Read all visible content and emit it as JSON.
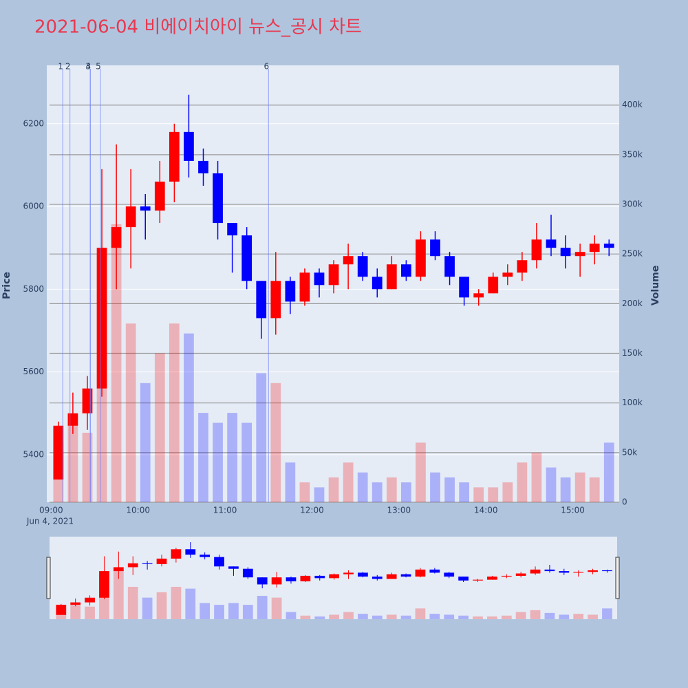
{
  "chart_data": {
    "type": "candlestick",
    "title": "2021-06-04 비에이치아이 뉴스_공시 차트",
    "x_date_label": "Jun 4, 2021",
    "y_title": "Price",
    "y2_title": "Volume",
    "x": [
      "09:00",
      "09:10",
      "09:20",
      "09:30",
      "09:40",
      "09:50",
      "10:00",
      "10:10",
      "10:20",
      "10:30",
      "10:40",
      "10:50",
      "11:00",
      "11:10",
      "11:20",
      "11:30",
      "11:40",
      "11:50",
      "12:00",
      "12:10",
      "12:20",
      "12:30",
      "12:40",
      "12:50",
      "13:00",
      "13:10",
      "13:20",
      "13:30",
      "13:40",
      "13:50",
      "14:00",
      "14:10",
      "14:20",
      "14:30",
      "14:40",
      "14:50",
      "15:00",
      "15:10",
      "15:20"
    ],
    "open": [
      5340,
      5470,
      5500,
      5560,
      5900,
      5950,
      6000,
      5990,
      6060,
      6180,
      6110,
      6080,
      5960,
      5930,
      5820,
      5730,
      5820,
      5770,
      5840,
      5810,
      5860,
      5880,
      5830,
      5800,
      5860,
      5830,
      5920,
      5880,
      5830,
      5780,
      5790,
      5830,
      5840,
      5870,
      5920,
      5900,
      5880,
      5890,
      5910
    ],
    "high": [
      5480,
      5550,
      5590,
      6090,
      6150,
      6090,
      6030,
      6110,
      6200,
      6270,
      6140,
      6110,
      5960,
      5950,
      5820,
      5890,
      5830,
      5850,
      5850,
      5870,
      5910,
      5890,
      5850,
      5880,
      5870,
      5940,
      5940,
      5890,
      5830,
      5800,
      5840,
      5860,
      5890,
      5960,
      5980,
      5930,
      5910,
      5930,
      5920
    ],
    "low": [
      5340,
      5450,
      5460,
      5540,
      5800,
      5850,
      5920,
      5960,
      6010,
      6070,
      6050,
      5920,
      5840,
      5800,
      5680,
      5690,
      5740,
      5760,
      5780,
      5790,
      5800,
      5820,
      5780,
      5800,
      5820,
      5820,
      5870,
      5810,
      5760,
      5760,
      5790,
      5810,
      5820,
      5850,
      5880,
      5850,
      5830,
      5860,
      5880
    ],
    "close": [
      5470,
      5500,
      5560,
      5900,
      5950,
      6000,
      5990,
      6060,
      6180,
      6110,
      6080,
      5960,
      5930,
      5820,
      5730,
      5820,
      5770,
      5840,
      5810,
      5860,
      5880,
      5830,
      5800,
      5860,
      5830,
      5920,
      5880,
      5830,
      5780,
      5790,
      5830,
      5840,
      5870,
      5920,
      5900,
      5880,
      5890,
      5910,
      5900
    ],
    "volume": [
      60000,
      80000,
      70000,
      250000,
      280000,
      180000,
      120000,
      150000,
      180000,
      170000,
      90000,
      80000,
      90000,
      80000,
      130000,
      120000,
      40000,
      20000,
      15000,
      25000,
      40000,
      30000,
      20000,
      25000,
      20000,
      60000,
      30000,
      25000,
      20000,
      15000,
      15000,
      20000,
      40000,
      50000,
      35000,
      25000,
      30000,
      25000,
      60000
    ],
    "up_color": "#ff0000",
    "down_color": "#0000ff",
    "xlim": [
      "08:57",
      "15:32"
    ],
    "xticks": [
      "09:00",
      "10:00",
      "11:00",
      "12:00",
      "13:00",
      "14:00",
      "15:00"
    ],
    "ylim": [
      5285,
      6341
    ],
    "yticks": [
      5400,
      5600,
      5800,
      6000,
      6200
    ],
    "y2lim": [
      0,
      440000
    ],
    "y2ticks": [
      0,
      {
        "value": 50000,
        "label": "50k"
      },
      {
        "value": 100000,
        "label": "100k"
      },
      {
        "value": 150000,
        "label": "150k"
      },
      {
        "value": 200000,
        "label": "200k"
      },
      {
        "value": 250000,
        "label": "250k"
      },
      {
        "value": 300000,
        "label": "300k"
      },
      {
        "value": 350000,
        "label": "350k"
      },
      {
        "value": 400000,
        "label": "400k"
      }
    ],
    "grid": true,
    "annotations": [
      {
        "label": "1",
        "x": "09:08"
      },
      {
        "label": "2",
        "x": "09:13"
      },
      {
        "label": "3",
        "x": "09:27"
      },
      {
        "label": "4",
        "x": "09:27"
      },
      {
        "label": "5",
        "x": "09:34"
      },
      {
        "label": "6",
        "x": "11:30"
      }
    ]
  }
}
